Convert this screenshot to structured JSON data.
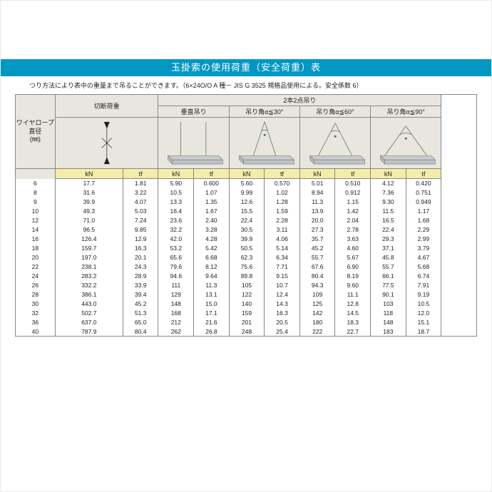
{
  "title": "玉掛索の使用荷重（安全荷重）表",
  "subtitle": "つり方法により表中の重量まで吊ることができます。（6×24O/O A 種－ JIS G 3525 規格品使用による。安全係数 6）",
  "header": {
    "rowhead": "ワイヤロープ\n直径\n(㎜)",
    "cutload": "切断荷重",
    "group": "2本2点吊り",
    "cols": [
      "垂直吊り",
      "吊り角α≦30°",
      "吊り角α≦60°",
      "吊り角α≦90°"
    ],
    "units": [
      "kN",
      "tf",
      "kN",
      "tf",
      "kN",
      "tf",
      "kN",
      "tf",
      "kN",
      "tf"
    ]
  },
  "diameters": [
    6,
    8,
    9,
    10,
    12,
    14,
    16,
    18,
    20,
    22,
    24,
    26,
    28,
    30,
    32,
    36,
    40
  ],
  "rows": [
    [
      "17.7",
      "1.81",
      "5.90",
      "0.600",
      "5.60",
      "0.570",
      "5.01",
      "0.510",
      "4.12",
      "0.420"
    ],
    [
      "31.6",
      "3.22",
      "10.5",
      "1.07",
      "9.99",
      "1.02",
      "8.94",
      "0.912",
      "7.36",
      "0.751"
    ],
    [
      "39.9",
      "4.07",
      "13.3",
      "1.35",
      "12.6",
      "1.28",
      "11.3",
      "1.15",
      "9.30",
      "0.949"
    ],
    [
      "49.3",
      "5.03",
      "16.4",
      "1.67",
      "15.5",
      "1.59",
      "13.9",
      "1.42",
      "11.5",
      "1.17"
    ],
    [
      "71.0",
      "7.24",
      "23.6",
      "2.40",
      "22.4",
      "2.28",
      "20.0",
      "2.04",
      "16.5",
      "1.68"
    ],
    [
      "96.5",
      "9.85",
      "32.2",
      "3.28",
      "30.5",
      "3.11",
      "27.3",
      "2.78",
      "22.4",
      "2.29"
    ],
    [
      "126.4",
      "12.9",
      "42.0",
      "4.28",
      "39.9",
      "4.06",
      "35.7",
      "3.63",
      "29.3",
      "2.99"
    ],
    [
      "159.7",
      "16.3",
      "53.2",
      "5.42",
      "50.5",
      "5.14",
      "45.2",
      "4.60",
      "37.1",
      "3.79"
    ],
    [
      "197.0",
      "20.1",
      "65.6",
      "6.68",
      "62.3",
      "6.34",
      "55.7",
      "5.67",
      "45.8",
      "4.67"
    ],
    [
      "238.1",
      "24.3",
      "79.6",
      "8.12",
      "75.6",
      "7.71",
      "67.6",
      "6.90",
      "55.7",
      "5.68"
    ],
    [
      "283.2",
      "28.9",
      "94.6",
      "9.64",
      "89.8",
      "9.15",
      "80.4",
      "8.19",
      "66.1",
      "6.74"
    ],
    [
      "332.2",
      "33.9",
      "111",
      "11.3",
      "105",
      "10.7",
      "94.3",
      "9.60",
      "77.5",
      "7.91"
    ],
    [
      "386.1",
      "39.4",
      "129",
      "13.1",
      "122",
      "12.4",
      "109",
      "11.1",
      "90.1",
      "9.19"
    ],
    [
      "443.0",
      "45.2",
      "148",
      "15.0",
      "140",
      "14.3",
      "125",
      "12.8",
      "103",
      "10.5"
    ],
    [
      "502.7",
      "51.3",
      "168",
      "17.1",
      "159",
      "16.3",
      "142",
      "14.5",
      "118",
      "12.0"
    ],
    [
      "637.0",
      "65.0",
      "212",
      "21.6",
      "201",
      "20.5",
      "180",
      "18.3",
      "148",
      "15.1"
    ],
    [
      "787.9",
      "80.4",
      "262",
      "26.8",
      "248",
      "25.4",
      "222",
      "22.7",
      "183",
      "18.7"
    ]
  ],
  "style": {
    "title_bg": "#0097c3",
    "header_bg": "#e9e6df",
    "unit_bg": "#f2eda8",
    "border": "#888888",
    "diagram": {
      "bar_fill": "#c9cbcd",
      "bar_stroke": "#7a7d80",
      "rope": "#587a66"
    }
  }
}
